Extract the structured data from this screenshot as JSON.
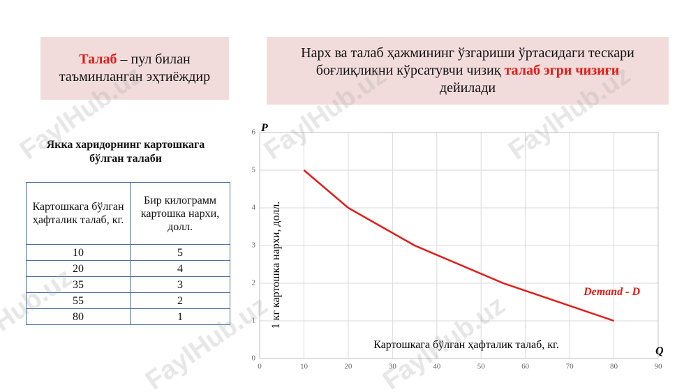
{
  "watermark": "FaylHub.uz",
  "definition": {
    "term": "Талаб",
    "text": " – пул билан таъминланган эҳтиёждир"
  },
  "info_box": {
    "text": "Нарх ва талаб ҳажмининг ўзгариши ўртасидаги тескари боғлиқликни кўрсатувчи чизиқ",
    "term": "талаб эгри чизиғи",
    "ending": "дейилади"
  },
  "table": {
    "title": "Якка харидорнинг картошкага бўлган талаби",
    "headers": [
      "Картошкага бўлган ҳафталик талаб, кг.",
      "Бир килограмм картошка нархи, долл."
    ],
    "rows": [
      [
        10,
        5
      ],
      [
        20,
        4
      ],
      [
        35,
        3
      ],
      [
        55,
        2
      ],
      [
        80,
        1
      ]
    ]
  },
  "chart_data": {
    "type": "line",
    "y_axis_symbol": "P",
    "x_axis_symbol": "Q",
    "y_label": "1 кг картошка нархи, долл.",
    "x_label": "Картошкага бўлган ҳафталик талаб, кг.",
    "annotation": "Demand - D",
    "x": [
      10,
      20,
      35,
      55,
      80
    ],
    "series": [
      {
        "color": "#e41b17",
        "values": [
          5,
          4,
          3,
          2,
          1
        ]
      }
    ],
    "xlim": [
      0,
      90
    ],
    "xticks": [
      0,
      10,
      20,
      30,
      40,
      50,
      60,
      70,
      80,
      90
    ],
    "ylim": [
      0,
      6
    ],
    "yticks": [
      0,
      1,
      2,
      3,
      4,
      5,
      6
    ],
    "grid": true
  }
}
